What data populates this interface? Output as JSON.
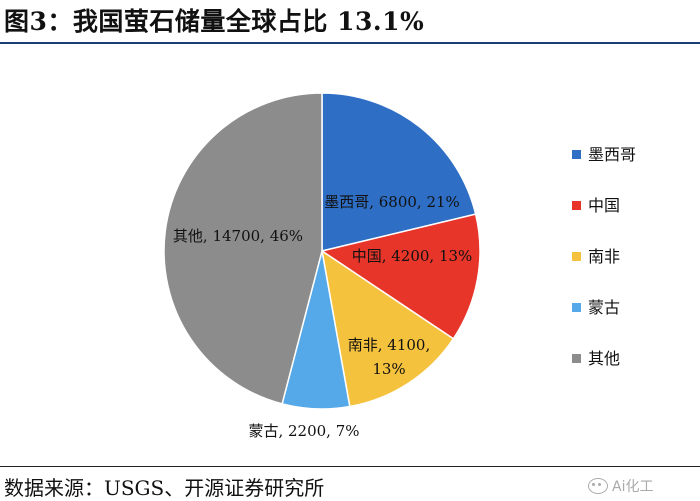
{
  "header": {
    "title": "图3：我国萤石储量全球占比 13.1%"
  },
  "footer": {
    "source": "数据来源：USGS、开源证券研究所",
    "watermark": "Ai化工"
  },
  "chart_data": {
    "type": "pie",
    "categories": [
      "墨西哥",
      "中国",
      "南非",
      "蒙古",
      "其他"
    ],
    "values": [
      6800,
      4200,
      4100,
      2200,
      14700
    ],
    "percent_labels": [
      "21%",
      "13%",
      "13%",
      "7%",
      "46%"
    ],
    "data_labels": [
      "墨西哥, 6800, 21%",
      "中国, 4200, 13%",
      "南非, 4100, 13%",
      "蒙古, 2200, 7%",
      "其他, 14700, 46%"
    ],
    "colors": [
      "#2e6fc5",
      "#e8352a",
      "#f5c23e",
      "#56a9e8",
      "#8c8c8c"
    ],
    "legend_placement": "right"
  }
}
